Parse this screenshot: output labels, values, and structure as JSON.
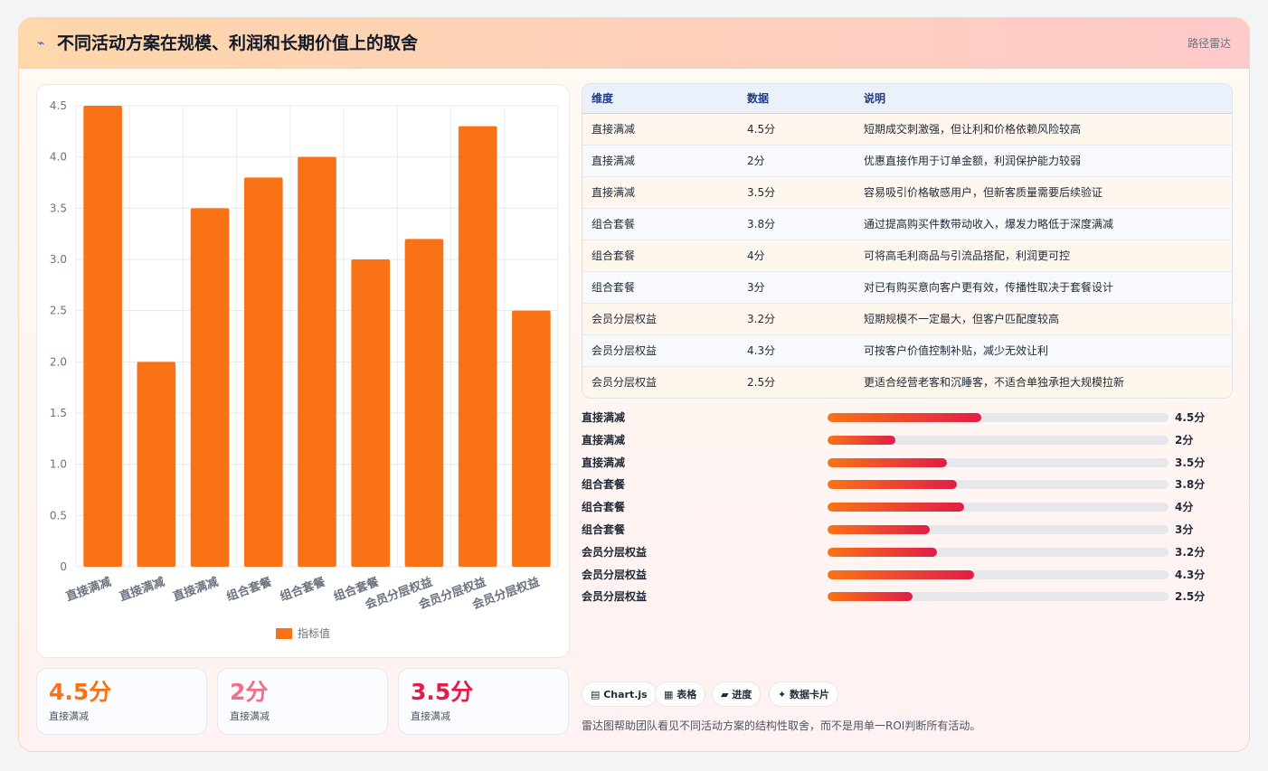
{
  "header": {
    "icon": "bolt-icon",
    "title": "不同活动方案在规模、利润和长期价值上的取舍",
    "tag": "路径雷达"
  },
  "chart_data": {
    "type": "bar",
    "categories": [
      "直接满减",
      "直接满减",
      "直接满减",
      "组合套餐",
      "组合套餐",
      "组合套餐",
      "会员分层权益",
      "会员分层权益",
      "会员分层权益"
    ],
    "series": [
      {
        "name": "指标值",
        "values": [
          4.5,
          2,
          3.5,
          3.8,
          4,
          3,
          3.2,
          4.3,
          2.5
        ]
      }
    ],
    "ylim": [
      0,
      4.5
    ],
    "yticks": [
      "0",
      "0.5",
      "1.0",
      "1.5",
      "2.0",
      "2.5",
      "3.0",
      "3.5",
      "4.0",
      "4.5"
    ],
    "grid": true,
    "legend": "bottom",
    "bar_color": "#f97316"
  },
  "table": {
    "headers": [
      "维度",
      "数据",
      "说明"
    ],
    "rows": [
      [
        "直接满减",
        "4.5分",
        "短期成交刺激强，但让利和价格依赖风险较高"
      ],
      [
        "直接满减",
        "2分",
        "优惠直接作用于订单金额，利润保护能力较弱"
      ],
      [
        "直接满减",
        "3.5分",
        "容易吸引价格敏感用户，但新客质量需要后续验证"
      ],
      [
        "组合套餐",
        "3.8分",
        "通过提高购买件数带动收入，爆发力略低于深度满减"
      ],
      [
        "组合套餐",
        "4分",
        "可将高毛利商品与引流品搭配，利润更可控"
      ],
      [
        "组合套餐",
        "3分",
        "对已有购买意向客户更有效，传播性取决于套餐设计"
      ],
      [
        "会员分层权益",
        "3.2分",
        "短期规模不一定最大，但客户匹配度较高"
      ],
      [
        "会员分层权益",
        "4.3分",
        "可按客户价值控制补贴，减少无效让利"
      ],
      [
        "会员分层权益",
        "2.5分",
        "更适合经营老客和沉睡客，不适合单独承担大规模拉新"
      ]
    ]
  },
  "progress": {
    "max": 10,
    "items": [
      {
        "label": "直接满减",
        "value": 4.5,
        "text": "4.5分"
      },
      {
        "label": "直接满减",
        "value": 2,
        "text": "2分"
      },
      {
        "label": "直接满减",
        "value": 3.5,
        "text": "3.5分"
      },
      {
        "label": "组合套餐",
        "value": 3.8,
        "text": "3.8分"
      },
      {
        "label": "组合套餐",
        "value": 4,
        "text": "4分"
      },
      {
        "label": "组合套餐",
        "value": 3,
        "text": "3分"
      },
      {
        "label": "会员分层权益",
        "value": 3.2,
        "text": "3.2分"
      },
      {
        "label": "会员分层权益",
        "value": 4.3,
        "text": "4.3分"
      },
      {
        "label": "会员分层权益",
        "value": 2.5,
        "text": "2.5分"
      }
    ]
  },
  "kpis": [
    {
      "value": "4.5分",
      "label": "直接满减",
      "color": "#f97316"
    },
    {
      "value": "2分",
      "label": "直接满减",
      "color": "#f0708a"
    },
    {
      "value": "3.5分",
      "label": "直接满减",
      "color": "#e11d48"
    }
  ],
  "chips": [
    "▤ Chart.js",
    "▦ 表格",
    "▰ 进度",
    "✦ 数据卡片"
  ],
  "footnote": "雷达图帮助团队看见不同活动方案的结构性取舍，而不是用单一ROI判断所有活动。"
}
